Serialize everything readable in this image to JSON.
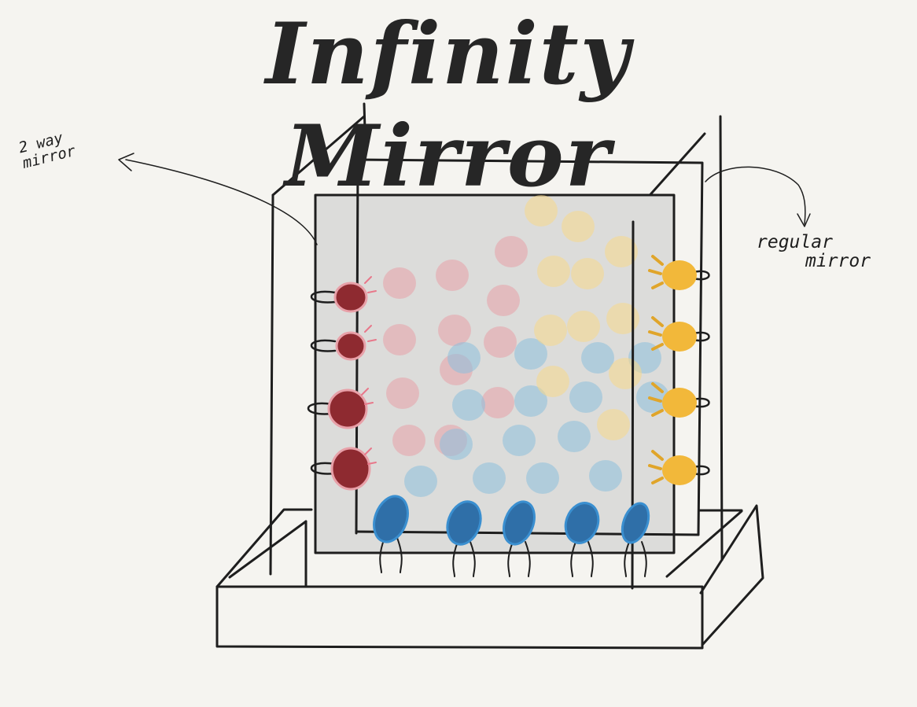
{
  "title": "Infinity Mirror",
  "labels": {
    "two_way_mirror_line1": "2 way",
    "two_way_mirror_line2": "mirror",
    "regular_mirror_line1": "regular",
    "regular_mirror_line2": "mirror"
  },
  "colors": {
    "background": "#f5f4f0",
    "ink": "#1e1e1e",
    "glass": "#dcdcda",
    "led_red": "#8e2a30",
    "led_red_glow": "#e8a0a8",
    "led_blue": "#2f6fa8",
    "led_blue_glow": "#8cc0dc",
    "led_yellow": "#f2b83a",
    "led_yellow_glow": "#f7d98a"
  },
  "icons": {
    "red_led": "red-led-icon",
    "blue_led": "blue-led-icon",
    "yellow_led": "yellow-led-icon",
    "arrow": "arrow-icon"
  }
}
